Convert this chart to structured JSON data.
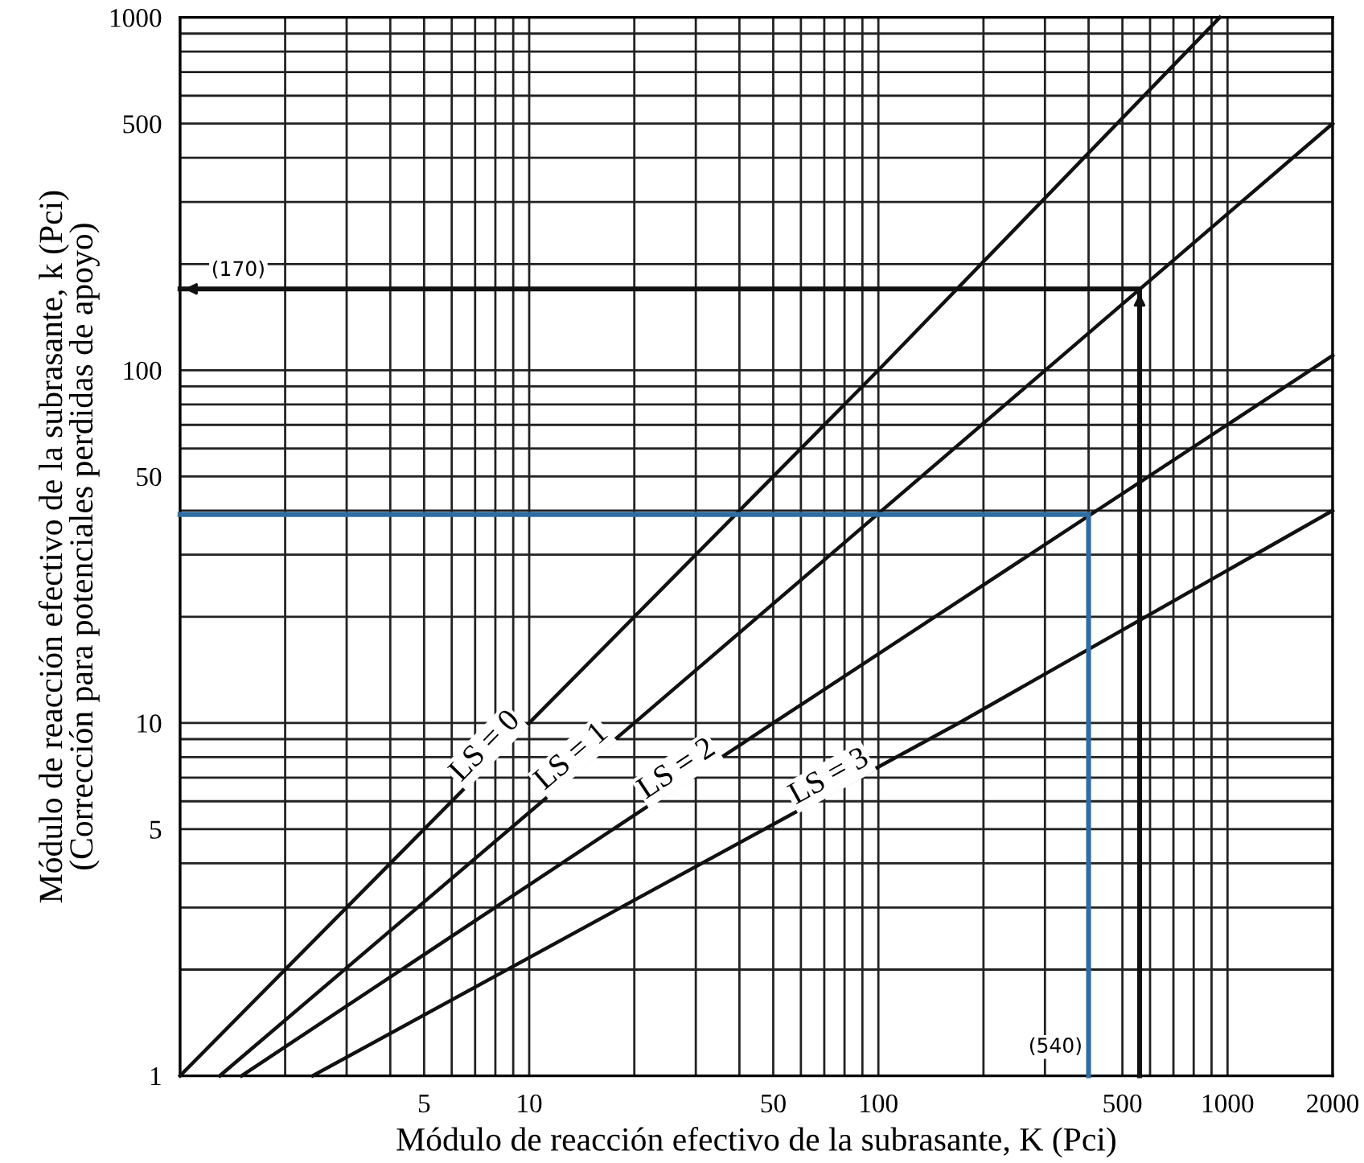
{
  "chart_data": {
    "type": "line",
    "xlabel": "Módulo de reacción efectivo de la subrasante, K (Pci)",
    "ylabel": "Módulo de reacción efectivo de la subrasante, k (Pci)\n(Corrección para potenciales perdidas de apoyo)",
    "log": "xy",
    "grid": true,
    "legend": false,
    "marker": "none",
    "line_style": "solid",
    "xlim": [
      1,
      2000
    ],
    "ylim": [
      1,
      1000
    ],
    "xticks": [
      {
        "value": 1,
        "label": null
      },
      {
        "value": 2,
        "label": null
      },
      {
        "value": 3,
        "label": null
      },
      {
        "value": 4,
        "label": null
      },
      5,
      {
        "value": 6,
        "label": null
      },
      {
        "value": 7,
        "label": null
      },
      {
        "value": 8,
        "label": null
      },
      {
        "value": 9,
        "label": null
      },
      10,
      {
        "value": 20,
        "label": null
      },
      {
        "value": 30,
        "label": null
      },
      {
        "value": 40,
        "label": null
      },
      50,
      {
        "value": 60,
        "label": null
      },
      {
        "value": 70,
        "label": null
      },
      {
        "value": 80,
        "label": null
      },
      {
        "value": 90,
        "label": null
      },
      100,
      {
        "value": 200,
        "label": null
      },
      {
        "value": 300,
        "label": null
      },
      {
        "value": 400,
        "label": null
      },
      500,
      {
        "value": 600,
        "label": null
      },
      {
        "value": 700,
        "label": null
      },
      {
        "value": 800,
        "label": null
      },
      {
        "value": 900,
        "label": null
      },
      1000,
      2000
    ],
    "yticks": [
      1,
      {
        "value": 2,
        "label": null
      },
      {
        "value": 3,
        "label": null
      },
      {
        "value": 4,
        "label": null
      },
      5,
      {
        "value": 6,
        "label": null
      },
      {
        "value": 7,
        "label": null
      },
      {
        "value": 8,
        "label": null
      },
      {
        "value": 9,
        "label": null
      },
      10,
      {
        "value": 20,
        "label": null
      },
      {
        "value": 30,
        "label": null
      },
      {
        "value": 40,
        "label": null
      },
      50,
      {
        "value": 60,
        "label": null
      },
      {
        "value": 70,
        "label": null
      },
      {
        "value": 80,
        "label": null
      },
      {
        "value": 90,
        "label": null
      },
      100,
      {
        "value": 200,
        "label": null
      },
      {
        "value": 300,
        "label": null
      },
      {
        "value": 400,
        "label": null
      },
      500,
      {
        "value": 600,
        "label": null
      },
      {
        "value": 700,
        "label": null
      },
      {
        "value": 800,
        "label": null
      },
      {
        "value": 900,
        "label": null
      },
      1000
    ],
    "series": [
      {
        "name": "LS = 0",
        "color": "#111111",
        "x": [
          1,
          10,
          100,
          950
        ],
        "values": [
          1,
          10,
          100,
          1000
        ]
      },
      {
        "name": "LS = 1",
        "color": "#111111",
        "x": [
          1.3,
          20,
          2000
        ],
        "values": [
          1,
          10,
          500
        ]
      },
      {
        "name": "LS = 2",
        "color": "#111111",
        "x": [
          1.5,
          50,
          2000
        ],
        "values": [
          1,
          10,
          110
        ]
      },
      {
        "name": "LS = 3",
        "color": "#111111",
        "x": [
          2.4,
          170,
          2000
        ],
        "values": [
          1,
          10,
          40
        ]
      },
      {
        "color": "#2e6da4",
        "x": [
          1,
          400,
          400
        ],
        "values": [
          39,
          39,
          1
        ]
      },
      {
        "color": "#111111",
        "x": [
          560,
          560,
          1
        ],
        "values": [
          1,
          170,
          170
        ]
      }
    ],
    "annotations": [
      {
        "text": "(170)",
        "x": 1,
        "y": 170
      },
      "(540)"
    ]
  }
}
